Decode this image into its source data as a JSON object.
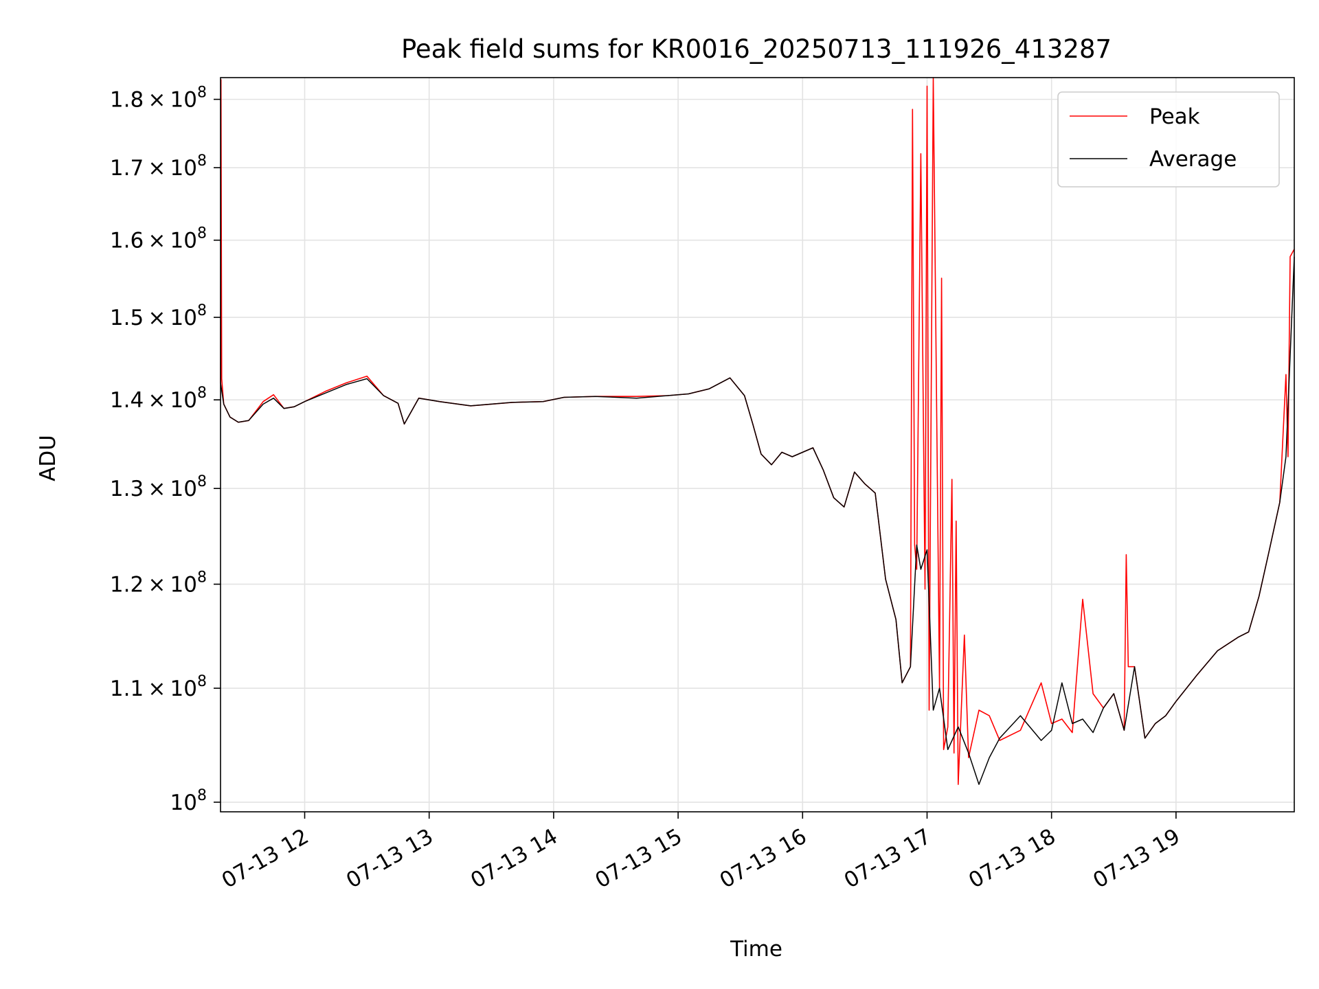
{
  "chart_data": {
    "type": "line",
    "title": "Peak field sums for KR0016_20250713_111926_413287",
    "xlabel": "Time",
    "ylabel": "ADU",
    "x_range": [
      "2025-07-13 11:19:26",
      "2025-07-13 19:57"
    ],
    "ylim": [
      99200000,
      183300000
    ],
    "y_scale": "log",
    "grid": true,
    "legend_position": "upper right",
    "x_ticks": [
      {
        "value": "2025-07-13 12:00",
        "label": "07-13 12"
      },
      {
        "value": "2025-07-13 13:00",
        "label": "07-13 13"
      },
      {
        "value": "2025-07-13 14:00",
        "label": "07-13 14"
      },
      {
        "value": "2025-07-13 15:00",
        "label": "07-13 15"
      },
      {
        "value": "2025-07-13 16:00",
        "label": "07-13 16"
      },
      {
        "value": "2025-07-13 17:00",
        "label": "07-13 17"
      },
      {
        "value": "2025-07-13 18:00",
        "label": "07-13 18"
      },
      {
        "value": "2025-07-13 19:00",
        "label": "07-13 19"
      }
    ],
    "y_ticks": [
      {
        "value": 100000000,
        "mantissa": "",
        "base": "10",
        "exp": "8"
      },
      {
        "value": 110000000,
        "mantissa": "1.1",
        "base": "10",
        "exp": "8"
      },
      {
        "value": 120000000,
        "mantissa": "1.2",
        "base": "10",
        "exp": "8"
      },
      {
        "value": 130000000,
        "mantissa": "1.3",
        "base": "10",
        "exp": "8"
      },
      {
        "value": 140000000,
        "mantissa": "1.4",
        "base": "10",
        "exp": "8"
      },
      {
        "value": 150000000,
        "mantissa": "1.5",
        "base": "10",
        "exp": "8"
      },
      {
        "value": 160000000,
        "mantissa": "1.6",
        "base": "10",
        "exp": "8"
      },
      {
        "value": 170000000,
        "mantissa": "1.7",
        "base": "10",
        "exp": "8"
      },
      {
        "value": 180000000,
        "mantissa": "1.8",
        "base": "10",
        "exp": "8"
      }
    ],
    "series": [
      {
        "name": "Average",
        "color": "#000000",
        "x": [
          "2025-07-13 11:19:26",
          "2025-07-13 11:21",
          "2025-07-13 11:24",
          "2025-07-13 11:28",
          "2025-07-13 11:33",
          "2025-07-13 11:40",
          "2025-07-13 11:45",
          "2025-07-13 11:50",
          "2025-07-13 11:55",
          "2025-07-13 12:00",
          "2025-07-13 12:10",
          "2025-07-13 12:20",
          "2025-07-13 12:30",
          "2025-07-13 12:38",
          "2025-07-13 12:45",
          "2025-07-13 12:48",
          "2025-07-13 12:55",
          "2025-07-13 13:05",
          "2025-07-13 13:20",
          "2025-07-13 13:40",
          "2025-07-13 13:55",
          "2025-07-13 14:05",
          "2025-07-13 14:20",
          "2025-07-13 14:40",
          "2025-07-13 14:55",
          "2025-07-13 15:05",
          "2025-07-13 15:15",
          "2025-07-13 15:25",
          "2025-07-13 15:32",
          "2025-07-13 15:36",
          "2025-07-13 15:40",
          "2025-07-13 15:45",
          "2025-07-13 15:50",
          "2025-07-13 15:55",
          "2025-07-13 16:05",
          "2025-07-13 16:10",
          "2025-07-13 16:15",
          "2025-07-13 16:20",
          "2025-07-13 16:25",
          "2025-07-13 16:30",
          "2025-07-13 16:35",
          "2025-07-13 16:40",
          "2025-07-13 16:45",
          "2025-07-13 16:48",
          "2025-07-13 16:52",
          "2025-07-13 16:55",
          "2025-07-13 16:57",
          "2025-07-13 17:00",
          "2025-07-13 17:03",
          "2025-07-13 17:06",
          "2025-07-13 17:10",
          "2025-07-13 17:15",
          "2025-07-13 17:20",
          "2025-07-13 17:25",
          "2025-07-13 17:30",
          "2025-07-13 17:35",
          "2025-07-13 17:45",
          "2025-07-13 17:55",
          "2025-07-13 18:00",
          "2025-07-13 18:05",
          "2025-07-13 18:10",
          "2025-07-13 18:15",
          "2025-07-13 18:20",
          "2025-07-13 18:25",
          "2025-07-13 18:30",
          "2025-07-13 18:35",
          "2025-07-13 18:40",
          "2025-07-13 18:45",
          "2025-07-13 18:50",
          "2025-07-13 18:55",
          "2025-07-13 19:00",
          "2025-07-13 19:10",
          "2025-07-13 19:20",
          "2025-07-13 19:30",
          "2025-07-13 19:35",
          "2025-07-13 19:40",
          "2025-07-13 19:45",
          "2025-07-13 19:50",
          "2025-07-13 19:53",
          "2025-07-13 19:57"
        ],
        "values": [
          142000000,
          139500000,
          138000000,
          137400000,
          137600000,
          139500000,
          140200000,
          139000000,
          139200000,
          139800000,
          140800000,
          141800000,
          142500000,
          140500000,
          139600000,
          137200000,
          140200000,
          139800000,
          139300000,
          139700000,
          139800000,
          140300000,
          140400000,
          140200000,
          140500000,
          140700000,
          141300000,
          142600000,
          140500000,
          137200000,
          133800000,
          132600000,
          134000000,
          133500000,
          134500000,
          132000000,
          129000000,
          128000000,
          131800000,
          130500000,
          129500000,
          120500000,
          116500000,
          110500000,
          112000000,
          124000000,
          121500000,
          123500000,
          108000000,
          110000000,
          104500000,
          106500000,
          104200000,
          101500000,
          103800000,
          105500000,
          107500000,
          105300000,
          106200000,
          110500000,
          106800000,
          107200000,
          106000000,
          108200000,
          109500000,
          106200000,
          112000000,
          105500000,
          106800000,
          107500000,
          108800000,
          111200000,
          113500000,
          114800000,
          115300000,
          118800000,
          123500000,
          128500000,
          133500000,
          157800000
        ]
      },
      {
        "name": "Peak",
        "color": "#ff0000",
        "x": [
          "2025-07-13 11:19:26",
          "2025-07-13 11:19:40",
          "2025-07-13 11:20",
          "2025-07-13 11:21",
          "2025-07-13 11:24",
          "2025-07-13 11:28",
          "2025-07-13 11:33",
          "2025-07-13 11:40",
          "2025-07-13 11:45",
          "2025-07-13 11:50",
          "2025-07-13 11:55",
          "2025-07-13 12:00",
          "2025-07-13 12:10",
          "2025-07-13 12:20",
          "2025-07-13 12:30",
          "2025-07-13 12:38",
          "2025-07-13 12:45",
          "2025-07-13 12:48",
          "2025-07-13 12:55",
          "2025-07-13 13:05",
          "2025-07-13 13:20",
          "2025-07-13 13:40",
          "2025-07-13 13:55",
          "2025-07-13 14:05",
          "2025-07-13 14:20",
          "2025-07-13 14:40",
          "2025-07-13 14:55",
          "2025-07-13 15:05",
          "2025-07-13 15:15",
          "2025-07-13 15:25",
          "2025-07-13 15:32",
          "2025-07-13 15:36",
          "2025-07-13 15:40",
          "2025-07-13 15:45",
          "2025-07-13 15:50",
          "2025-07-13 15:55",
          "2025-07-13 16:05",
          "2025-07-13 16:10",
          "2025-07-13 16:15",
          "2025-07-13 16:20",
          "2025-07-13 16:25",
          "2025-07-13 16:30",
          "2025-07-13 16:35",
          "2025-07-13 16:40",
          "2025-07-13 16:45",
          "2025-07-13 16:48",
          "2025-07-13 16:52",
          "2025-07-13 16:53",
          "2025-07-13 16:54",
          "2025-07-13 16:55",
          "2025-07-13 16:57",
          "2025-07-13 16:59",
          "2025-07-13 17:00",
          "2025-07-13 17:01",
          "2025-07-13 17:03",
          "2025-07-13 17:06",
          "2025-07-13 17:07",
          "2025-07-13 17:08",
          "2025-07-13 17:10",
          "2025-07-13 17:12",
          "2025-07-13 17:13",
          "2025-07-13 17:14",
          "2025-07-13 17:15",
          "2025-07-13 17:18",
          "2025-07-13 17:20",
          "2025-07-13 17:25",
          "2025-07-13 17:30",
          "2025-07-13 17:35",
          "2025-07-13 17:45",
          "2025-07-13 17:55",
          "2025-07-13 18:00",
          "2025-07-13 18:05",
          "2025-07-13 18:10",
          "2025-07-13 18:15",
          "2025-07-13 18:20",
          "2025-07-13 18:25",
          "2025-07-13 18:30",
          "2025-07-13 18:35",
          "2025-07-13 18:36",
          "2025-07-13 18:37",
          "2025-07-13 18:40",
          "2025-07-13 18:45",
          "2025-07-13 18:50",
          "2025-07-13 18:55",
          "2025-07-13 19:00",
          "2025-07-13 19:10",
          "2025-07-13 19:20",
          "2025-07-13 19:30",
          "2025-07-13 19:35",
          "2025-07-13 19:40",
          "2025-07-13 19:45",
          "2025-07-13 19:50",
          "2025-07-13 19:53",
          "2025-07-13 19:54",
          "2025-07-13 19:55",
          "2025-07-13 19:57"
        ],
        "values": [
          142000000,
          183000000,
          142500000,
          139500000,
          138000000,
          137400000,
          137600000,
          139800000,
          140600000,
          139000000,
          139200000,
          139800000,
          141000000,
          142000000,
          142800000,
          140500000,
          139600000,
          137200000,
          140200000,
          139800000,
          139300000,
          139700000,
          139800000,
          140300000,
          140400000,
          140400000,
          140500000,
          140700000,
          141300000,
          142600000,
          140500000,
          137200000,
          133800000,
          132600000,
          134000000,
          133500000,
          134500000,
          132000000,
          129000000,
          128000000,
          131800000,
          130500000,
          129500000,
          120500000,
          116500000,
          110500000,
          112000000,
          178500000,
          124000000,
          121500000,
          172000000,
          119500000,
          182000000,
          108000000,
          183300000,
          110000000,
          155000000,
          104500000,
          106500000,
          131000000,
          104200000,
          126500000,
          101500000,
          115000000,
          103800000,
          108000000,
          107500000,
          105300000,
          106200000,
          110500000,
          106800000,
          107200000,
          106000000,
          118500000,
          109500000,
          108200000,
          109500000,
          106200000,
          123000000,
          112000000,
          112000000,
          105500000,
          106800000,
          107500000,
          108800000,
          111200000,
          113500000,
          114800000,
          115300000,
          118800000,
          123500000,
          128500000,
          143000000,
          133500000,
          157800000,
          158800000
        ]
      }
    ]
  }
}
